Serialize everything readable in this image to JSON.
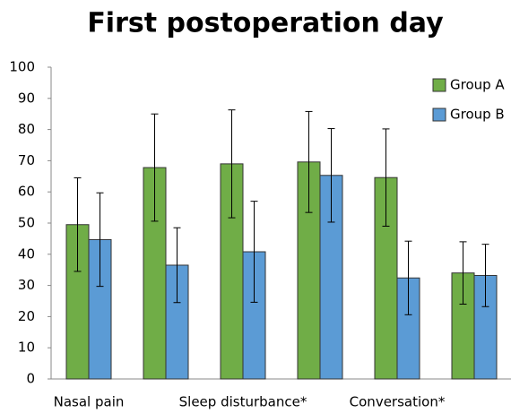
{
  "chart_data": {
    "type": "bar",
    "title": "First postoperation day",
    "categories": [
      "Nasal pain",
      null,
      "Sleep disturbance*",
      null,
      "Conversation*",
      null
    ],
    "series": [
      {
        "name": "Group A",
        "color": "#70ad47",
        "values": [
          49.5,
          67.8,
          69,
          69.6,
          64.6,
          34
        ],
        "errors": [
          15,
          17.2,
          17.3,
          16.2,
          15.6,
          10
        ]
      },
      {
        "name": "Group B",
        "color": "#5b9bd5",
        "values": [
          44.7,
          36.5,
          40.8,
          65.3,
          32.4,
          33.2
        ],
        "errors": [
          15,
          12,
          16.2,
          15,
          11.8,
          10
        ]
      }
    ],
    "ylim": [
      0,
      100
    ],
    "yticks": [
      0,
      10,
      20,
      30,
      40,
      50,
      60,
      70,
      80,
      90,
      100
    ],
    "legend": "top-right"
  }
}
